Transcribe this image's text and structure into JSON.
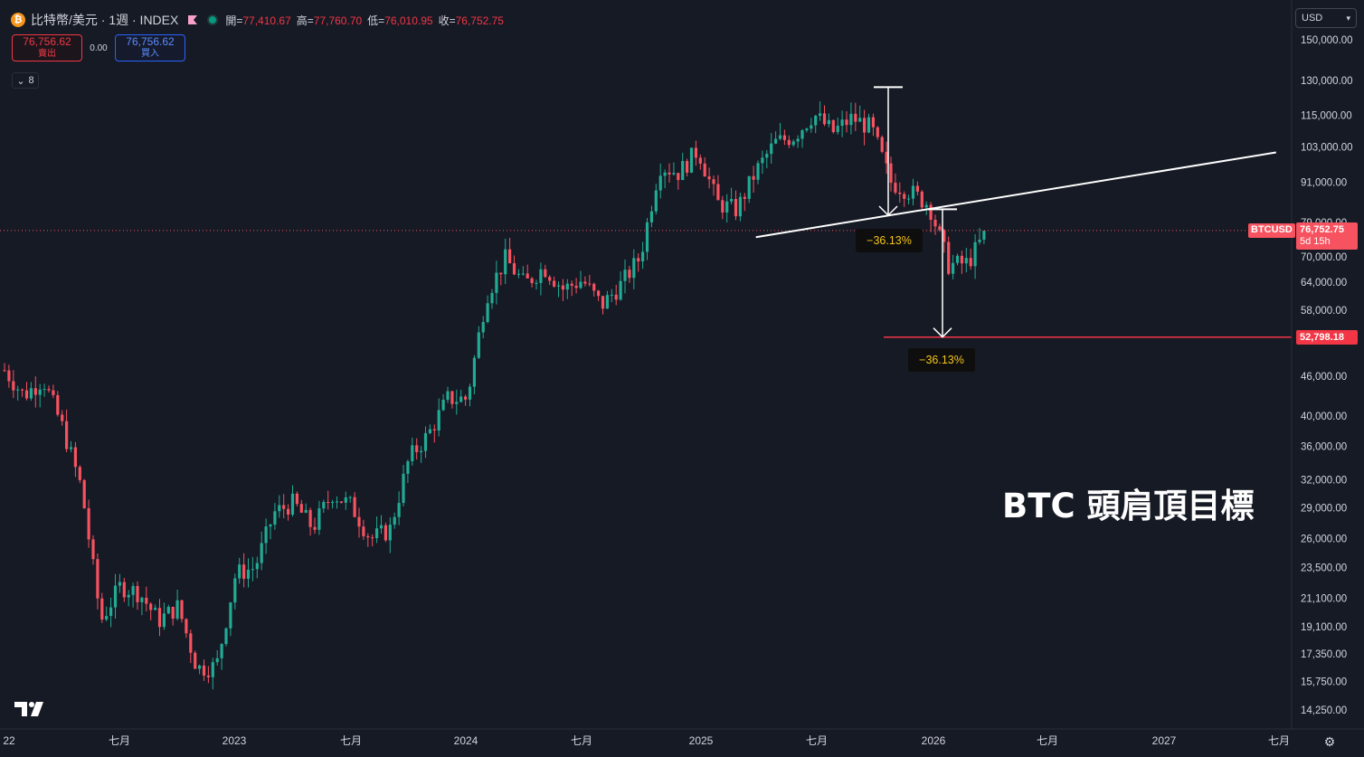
{
  "legend": {
    "symbol": "比特幣/美元 · 1週 · INDEX",
    "open_label": "開=",
    "open_value": "77,410.67",
    "high_label": "高=",
    "high_value": "77,760.70",
    "low_label": "低=",
    "low_value": "76,010.95",
    "close_label": "收=",
    "close_value": "76,752.75",
    "icon": "bitcoin-icon"
  },
  "trade": {
    "sell_price": "76,756.62",
    "sell_label": "賣出",
    "spread": "0.00",
    "buy_price": "76,756.62",
    "buy_label": "買入"
  },
  "indicators_count": "8",
  "currency": "USD",
  "price_tags": {
    "symbol_label": "BTCUSD",
    "last_price": "76,752.75",
    "countdown": "5d 15h",
    "target_price": "52,798.18"
  },
  "chart_data": {
    "type": "candlestick",
    "title": "",
    "y_scale": "log",
    "ylim": [
      13500,
      160000
    ],
    "y_ticks": [
      "150,000.00",
      "130,000.00",
      "115,000.00",
      "103,000.00",
      "91,000.00",
      "79,000.00",
      "70,000.00",
      "64,000.00",
      "58,000.00",
      "46,000.00",
      "40,000.00",
      "36,000.00",
      "32,000.00",
      "29,000.00",
      "26,000.00",
      "23,500.00",
      "21,100.00",
      "19,100.00",
      "17,350.00",
      "15,750.00",
      "14,250.00"
    ],
    "x_ticks": [
      "22",
      "七月",
      "2023",
      "七月",
      "2024",
      "七月",
      "2025",
      "七月",
      "2026",
      "七月",
      "2027",
      "七月"
    ],
    "candle_colors": {
      "up": "#22ab94",
      "down": "#f7525f"
    },
    "weekly_close_path": [
      [
        "2022-01",
        47000
      ],
      [
        "2022-02",
        43000
      ],
      [
        "2022-03",
        45500
      ],
      [
        "2022-04",
        38500
      ],
      [
        "2022-05",
        31000
      ],
      [
        "2022-06",
        19500
      ],
      [
        "2022-07",
        22000
      ],
      [
        "2022-08",
        21500
      ],
      [
        "2022-09",
        19500
      ],
      [
        "2022-10",
        20500
      ],
      [
        "2022-11",
        16500
      ],
      [
        "2022-12",
        16600
      ],
      [
        "2023-01",
        23000
      ],
      [
        "2023-02",
        23500
      ],
      [
        "2023-03",
        28500
      ],
      [
        "2023-04",
        29500
      ],
      [
        "2023-05",
        27000
      ],
      [
        "2023-06",
        30500
      ],
      [
        "2023-07",
        29200
      ],
      [
        "2023-08",
        26000
      ],
      [
        "2023-09",
        26800
      ],
      [
        "2023-10",
        34500
      ],
      [
        "2023-11",
        37500
      ],
      [
        "2023-12",
        42500
      ],
      [
        "2024-01",
        42500
      ],
      [
        "2024-02",
        61000
      ],
      [
        "2024-03",
        69500
      ],
      [
        "2024-04",
        63500
      ],
      [
        "2024-05",
        67500
      ],
      [
        "2024-06",
        62500
      ],
      [
        "2024-07",
        64500
      ],
      [
        "2024-08",
        59000
      ],
      [
        "2024-09",
        63500
      ],
      [
        "2024-10",
        70000
      ],
      [
        "2024-11",
        96500
      ],
      [
        "2024-12",
        94000
      ],
      [
        "2025-01",
        102000
      ],
      [
        "2025-02",
        84500
      ],
      [
        "2025-03",
        82500
      ],
      [
        "2025-04",
        94500
      ],
      [
        "2025-05",
        104500
      ],
      [
        "2025-06",
        107000
      ],
      [
        "2025-07",
        115500
      ],
      [
        "2025-08",
        108500
      ],
      [
        "2025-09",
        114000
      ],
      [
        "2025-10",
        110000
      ],
      [
        "2025-11",
        91000
      ],
      [
        "2025-12",
        88000
      ],
      [
        "2026-01",
        84000
      ],
      [
        "2026-02",
        68000
      ],
      [
        "2026-03",
        68500
      ],
      [
        "2026-04",
        76752.75
      ]
    ],
    "last_price": 76752.75,
    "target_price": 52798.18,
    "annotations": [
      {
        "kind": "drop-measure",
        "label": "−36.13%",
        "from_value": 127000,
        "to_value": 81000
      },
      {
        "kind": "drop-measure",
        "label": "−36.13%",
        "from_value": 82700,
        "to_value": 52798.18
      },
      {
        "kind": "neckline",
        "from": [
          "2025-04",
          75000
        ],
        "to": [
          "2027-07",
          101000
        ]
      },
      {
        "kind": "text",
        "label": "BTC 頭肩頂目標"
      }
    ]
  }
}
